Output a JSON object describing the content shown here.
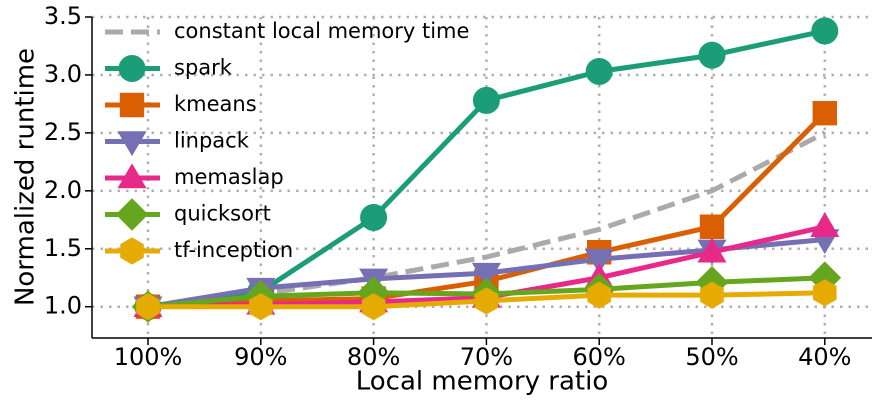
{
  "chart_data": {
    "type": "line",
    "xlabel": "Local memory ratio",
    "ylabel": "Normalized runtime",
    "categories": [
      "100%",
      "90%",
      "80%",
      "70%",
      "60%",
      "50%",
      "40%"
    ],
    "ylim": [
      0.73,
      3.5
    ],
    "yticks": [
      {
        "value": 1,
        "label": "1.0"
      },
      1.5,
      {
        "value": 2,
        "label": "2.0"
      },
      2.5,
      {
        "value": 3,
        "label": "3.0"
      },
      3.5
    ],
    "grid": true,
    "legend": "upper left",
    "series": [
      {
        "name": "constant local memory time",
        "color": "#aaaaaa",
        "style": "dashed",
        "values": [
          1.0,
          1.111,
          1.25,
          1.429,
          1.667,
          2.0,
          2.5
        ]
      },
      {
        "name": "spark",
        "color": "#1b9e77",
        "marker": "circle",
        "values": [
          1.0,
          1.13,
          1.77,
          2.78,
          3.03,
          3.17,
          3.38
        ]
      },
      {
        "name": "kmeans",
        "color": "#d95f02",
        "marker": "square",
        "values": [
          1.0,
          1.05,
          1.07,
          1.22,
          1.47,
          1.69,
          2.67
        ]
      },
      {
        "name": "linpack",
        "color": "#7570b3",
        "marker": "triangle-down",
        "values": [
          1.0,
          1.16,
          1.24,
          1.29,
          1.41,
          1.49,
          1.58
        ]
      },
      {
        "name": "memaslap",
        "color": "#e7298a",
        "marker": "triangle-up",
        "values": [
          1.0,
          1.02,
          1.04,
          1.08,
          1.25,
          1.47,
          1.69
        ]
      },
      {
        "name": "quicksort",
        "color": "#66a61e",
        "marker": "diamond",
        "values": [
          1.0,
          1.09,
          1.12,
          1.11,
          1.15,
          1.21,
          1.25
        ]
      },
      {
        "name": "tf-inception",
        "color": "#e6ab02",
        "marker": "hexagon",
        "values": [
          1.0,
          1.0,
          1.0,
          1.05,
          1.1,
          1.1,
          1.12
        ]
      }
    ]
  }
}
